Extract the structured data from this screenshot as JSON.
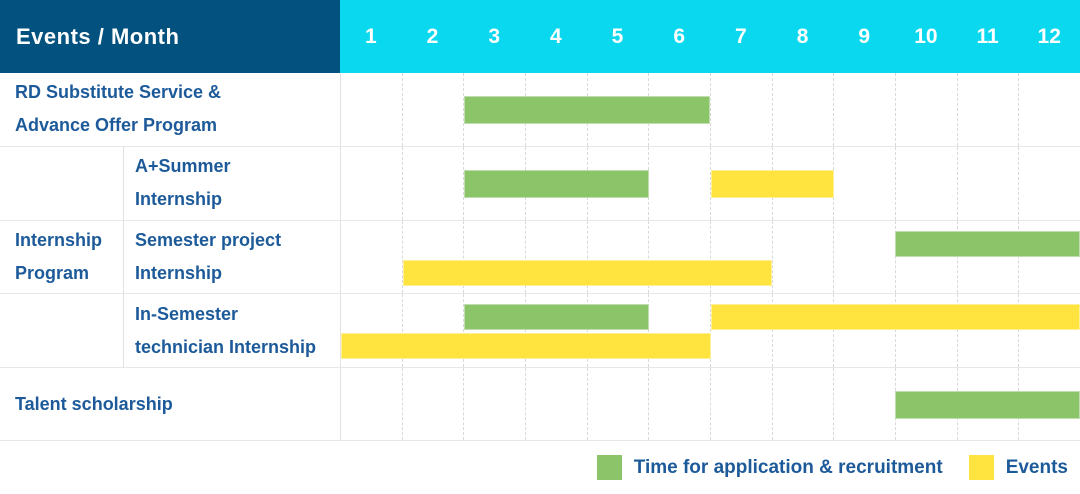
{
  "colors": {
    "header_bg": "#03517e",
    "months_bg": "#09d8ee",
    "header_text": "#ffffff",
    "label_text": "#1d5a9a",
    "bar_green": "#8cc46a",
    "bar_yellow": "#ffe33e",
    "grid_line": "#e7e7e7",
    "grid_dash": "#d9d9d9",
    "background": "#ffffff"
  },
  "header": {
    "corner_label": "Events / Month"
  },
  "chart_data": {
    "type": "bar",
    "variant": "gantt",
    "title": "Events / Month",
    "x_categories": [
      "1",
      "2",
      "3",
      "4",
      "5",
      "6",
      "7",
      "8",
      "9",
      "10",
      "11",
      "12"
    ],
    "x_range": [
      1,
      12
    ],
    "grid": "dashed-vertical-columns, solid-horizontal-rows",
    "legend_position": "bottom-right",
    "legend": [
      {
        "key": "recruitment",
        "label": "Time for application & recruitment",
        "color": "#8cc46a"
      },
      {
        "key": "event",
        "label": "Events",
        "color": "#ffe33e"
      }
    ],
    "rows": [
      {
        "group": "",
        "label": "RD Substitute Service & Advance Offer Program",
        "label_lines": [
          "RD Substitute Service &",
          "Advance Offer Program"
        ],
        "lines": [
          [
            {
              "type": "recruitment",
              "start_month": 3,
              "end_month": 6
            }
          ]
        ]
      },
      {
        "group": "Internship Program",
        "label": "A+Summer Internship",
        "label_lines": [
          "A+Summer",
          "Internship"
        ],
        "lines": [
          [
            {
              "type": "recruitment",
              "start_month": 3,
              "end_month": 5
            },
            {
              "type": "event",
              "start_month": 7,
              "end_month": 8
            }
          ]
        ]
      },
      {
        "group": "Internship Program",
        "label": "Semester project Internship",
        "label_lines": [
          "Semester project",
          "Internship"
        ],
        "lines": [
          [
            {
              "type": "recruitment",
              "start_month": 10,
              "end_month": 12
            }
          ],
          [
            {
              "type": "event",
              "start_month": 2,
              "end_month": 7
            }
          ]
        ]
      },
      {
        "group": "Internship Program",
        "label": "In-Semester technician Internship",
        "label_lines": [
          "In-Semester",
          "technician Internship"
        ],
        "lines": [
          [
            {
              "type": "recruitment",
              "start_month": 3,
              "end_month": 5
            },
            {
              "type": "event",
              "start_month": 7,
              "end_month": 12
            }
          ],
          [
            {
              "type": "event",
              "start_month": 1,
              "end_month": 6
            }
          ]
        ]
      },
      {
        "group": "",
        "label": "Talent scholarship",
        "label_lines": [
          "Talent scholarship"
        ],
        "lines": [
          [
            {
              "type": "recruitment",
              "start_month": 10,
              "end_month": 12
            }
          ]
        ]
      }
    ],
    "group_label": "Internship Program",
    "group_label_lines": [
      "Internship",
      "Program"
    ]
  }
}
